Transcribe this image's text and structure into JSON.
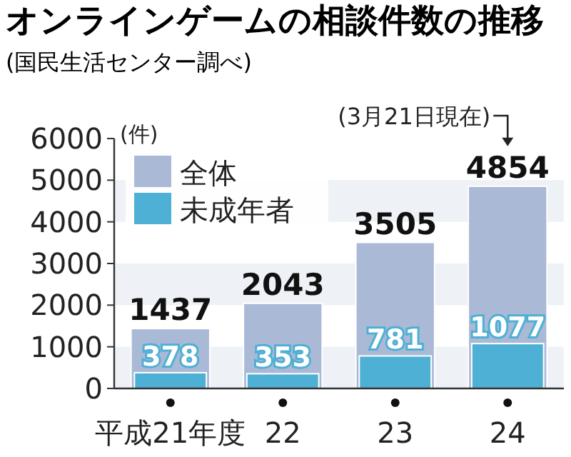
{
  "chart_data": {
    "type": "bar",
    "title": "オンラインゲームの相談件数の推移",
    "subtitle": "(国民生活センター調べ)",
    "ylabel": "(件)",
    "categories": [
      "平成21年度",
      "22",
      "23",
      "24"
    ],
    "series": [
      {
        "name": "全体",
        "color": "#a9b9d6",
        "values": [
          1437,
          2043,
          3505,
          4854
        ]
      },
      {
        "name": "未成年者",
        "color": "#4eb0d4",
        "values": [
          378,
          353,
          781,
          1077
        ]
      }
    ],
    "ylim": [
      0,
      6000
    ],
    "yticks": [
      0,
      1000,
      2000,
      3000,
      4000,
      5000,
      6000
    ],
    "bands": [
      {
        "axis": "y",
        "from": 0,
        "to": 1000,
        "color": "#eef1f6"
      },
      {
        "axis": "y",
        "from": 2000,
        "to": 3000,
        "color": "#eef1f6"
      },
      {
        "axis": "y",
        "from": 4000,
        "to": 5000,
        "color": "#eef1f6"
      }
    ],
    "annotations": [
      {
        "text": "(3月21日現在)",
        "x": "24",
        "y": 4854
      }
    ],
    "data_labels": true,
    "legend": "top left",
    "grid": false
  }
}
